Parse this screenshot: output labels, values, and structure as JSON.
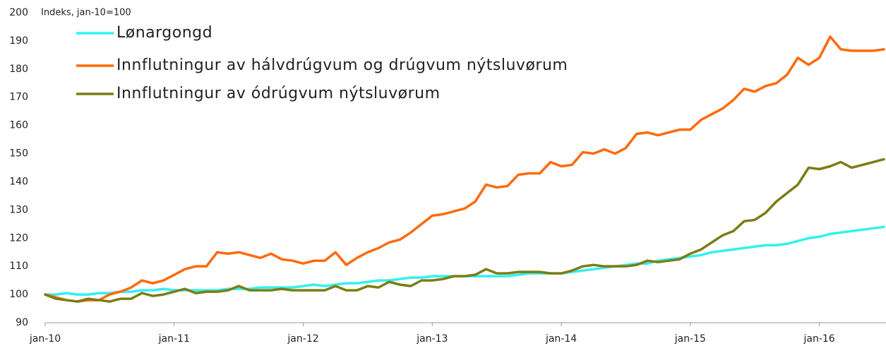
{
  "chart_data": {
    "type": "line",
    "ylabel": "Indeks, jan-10=100",
    "categories": [
      "jan-10",
      null,
      null,
      null,
      null,
      null,
      null,
      null,
      null,
      null,
      null,
      null,
      "jan-11",
      null,
      null,
      null,
      null,
      null,
      null,
      null,
      null,
      null,
      null,
      null,
      "jan-12",
      null,
      null,
      null,
      null,
      null,
      null,
      null,
      null,
      null,
      null,
      null,
      "jan-13",
      null,
      null,
      null,
      null,
      null,
      null,
      null,
      null,
      null,
      null,
      null,
      "jan-14",
      null,
      null,
      null,
      null,
      null,
      null,
      null,
      null,
      null,
      null,
      null,
      "jan-15",
      null,
      null,
      null,
      null,
      null,
      null,
      null,
      null,
      null,
      null,
      null,
      "jan-16",
      null,
      null,
      null,
      null,
      null,
      null
    ],
    "series": [
      {
        "name": "Lønargongd",
        "color": "#33f0f0",
        "values": [
          100,
          100,
          100.5,
          100,
          100,
          100.5,
          100.5,
          101,
          101,
          101.5,
          101.5,
          102,
          101.5,
          101.5,
          101.5,
          101.5,
          101.5,
          102,
          102,
          102,
          102.5,
          102.5,
          102.5,
          102.5,
          103,
          103.5,
          103,
          103.5,
          104,
          104,
          104.5,
          105,
          105,
          105.5,
          106,
          106,
          106.5,
          106.5,
          106.5,
          106.5,
          106.5,
          106.5,
          106.5,
          106.5,
          107,
          107.5,
          107.5,
          107.5,
          107.5,
          108,
          108.5,
          109,
          109.5,
          110,
          110.5,
          111,
          111,
          112,
          112.5,
          113,
          113.5,
          114,
          115,
          115.5,
          116,
          116.5,
          117,
          117.5,
          117.5,
          118,
          119,
          120,
          120.5,
          121.5,
          122,
          122.5,
          123,
          123.5,
          124
        ]
      },
      {
        "name": "Innflutningur av hálvdrúgvum og drúgvum nýtsluvørum",
        "color": "#ff6a0a",
        "values": [
          100,
          99,
          98,
          97.5,
          98,
          98,
          100,
          101,
          102.5,
          105,
          104,
          105,
          107,
          109,
          110,
          110,
          115,
          114.5,
          115,
          114,
          113,
          114.5,
          112.5,
          112,
          111,
          112,
          112,
          115,
          110.5,
          113,
          115,
          116.5,
          118.5,
          119.5,
          122,
          125,
          128,
          128.5,
          129.5,
          130.5,
          133,
          139,
          138,
          138.5,
          142.5,
          143,
          143,
          147,
          145.5,
          146,
          150.5,
          150,
          151.5,
          150,
          152,
          157,
          157.5,
          156.5,
          157.5,
          158.5,
          158.5,
          162,
          164,
          166,
          169,
          173,
          172,
          174,
          175,
          178,
          184,
          181.5,
          184,
          191.5,
          187,
          186.5,
          186.5,
          186.5,
          187
        ]
      },
      {
        "name": "Innflutningur av ódrúgvum nýtsluvørum",
        "color": "#7b7d12",
        "values": [
          100,
          98.5,
          98,
          97.5,
          98.5,
          98,
          97.5,
          98.5,
          98.5,
          100.5,
          99.5,
          100,
          101,
          102,
          100.5,
          101,
          101,
          101.5,
          103,
          101.5,
          101.5,
          101.5,
          102,
          101.5,
          101.5,
          101.5,
          101.5,
          103,
          101.5,
          101.5,
          103,
          102.5,
          104.5,
          103.5,
          103,
          105,
          105,
          105.5,
          106.5,
          106.5,
          107,
          109,
          107.5,
          107.5,
          108,
          108,
          108,
          107.5,
          107.5,
          108.5,
          110,
          110.5,
          110,
          110,
          110,
          110.5,
          112,
          111.5,
          112,
          112.5,
          114.5,
          116,
          118.5,
          121,
          122.5,
          126,
          126.5,
          129,
          133,
          136,
          139,
          145,
          144.5,
          145.5,
          147,
          145,
          146,
          147,
          148
        ]
      }
    ],
    "ylim": [
      90,
      200
    ],
    "yticks": [
      90,
      100,
      110,
      120,
      130,
      140,
      150,
      160,
      170,
      180,
      190,
      200
    ],
    "legend": "top-left"
  }
}
